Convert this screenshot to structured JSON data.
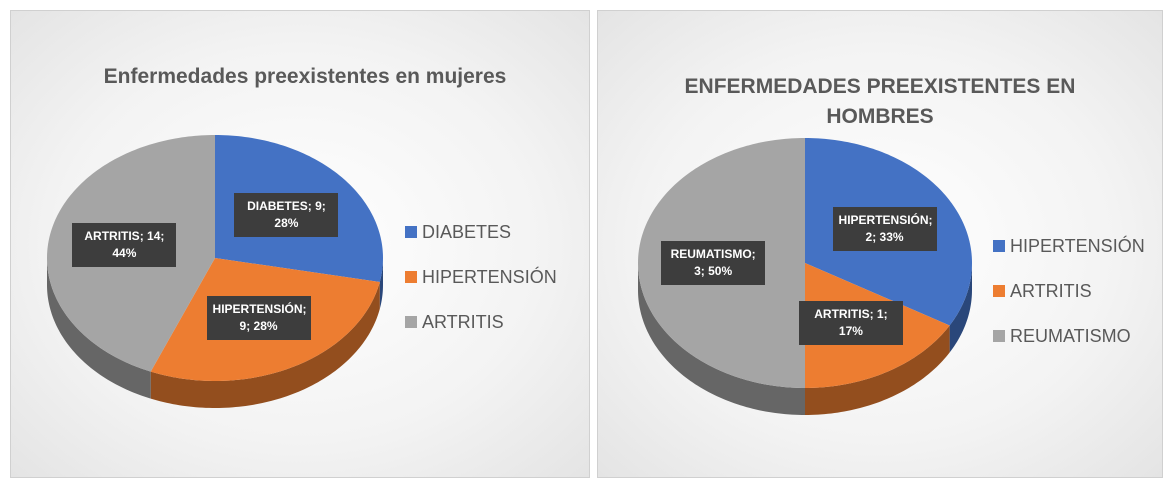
{
  "chart_data": [
    {
      "type": "pie",
      "title": "Enfermedades preexistentes en mujeres",
      "categories": [
        "DIABETES",
        "HIPERTENSIÓN",
        "ARTRITIS"
      ],
      "values": [
        9,
        9,
        14
      ],
      "value_labels": [
        "DIABETES; 9; 28%",
        "HIPERTENSIÓN; 9; 28%",
        "ARTRITIS; 14; 44%"
      ],
      "colors": [
        "#4472c4",
        "#ed7d31",
        "#a5a5a5"
      ],
      "legend": "right"
    },
    {
      "type": "pie",
      "title": "ENFERMEDADES PREEXISTENTES EN HOMBRES",
      "categories": [
        "HIPERTENSIÓN",
        "ARTRITIS",
        "REUMATISMO"
      ],
      "values": [
        2,
        1,
        3
      ],
      "value_labels": [
        "HIPERTENSIÓN; 2; 33%",
        "ARTRITIS; 1; 17%",
        "REUMATISMO; 3; 50%"
      ],
      "colors": [
        "#4472c4",
        "#ed7d31",
        "#a5a5a5"
      ],
      "legend": "right"
    }
  ]
}
